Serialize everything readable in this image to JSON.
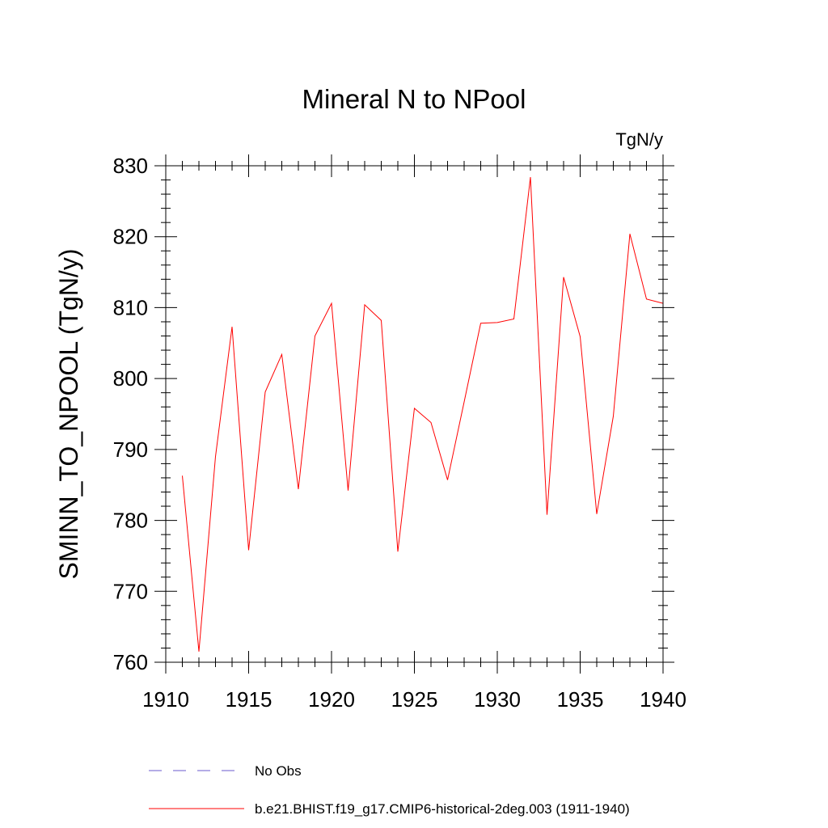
{
  "chart_data": {
    "type": "line",
    "title": "Mineral N to NPool",
    "units_label": "TgN/y",
    "ylabel": "SMINN_TO_NPOOL  (TgN/y)",
    "xlabel": "",
    "xlim": [
      1910,
      1940
    ],
    "ylim": [
      760,
      830
    ],
    "x_ticks": [
      1910,
      1915,
      1920,
      1925,
      1930,
      1935,
      1940
    ],
    "y_ticks": [
      760,
      770,
      780,
      790,
      800,
      810,
      820,
      830
    ],
    "series": [
      {
        "name": "b.e21.BHIST.f19_g17.CMIP6-historical-2deg.003 (1911-1940)",
        "color": "#ff0000",
        "x": [
          1911,
          1912,
          1913,
          1914,
          1915,
          1916,
          1917,
          1918,
          1919,
          1920,
          1921,
          1922,
          1923,
          1924,
          1925,
          1926,
          1927,
          1928,
          1929,
          1930,
          1931,
          1932,
          1933,
          1934,
          1935,
          1936,
          1937,
          1938,
          1939,
          1940
        ],
        "y": [
          786.3,
          761.5,
          789.0,
          807.3,
          775.8,
          798.1,
          803.4,
          784.4,
          806.0,
          810.6,
          784.2,
          810.4,
          808.2,
          775.6,
          795.8,
          793.8,
          785.7,
          796.7,
          807.8,
          807.9,
          808.4,
          828.4,
          780.8,
          814.3,
          805.9,
          780.9,
          794.7,
          820.4,
          811.2,
          810.6
        ]
      }
    ],
    "legend": [
      {
        "label": "No Obs",
        "style": "dashed",
        "color": "#6a5acd"
      },
      {
        "label": "b.e21.BHIST.f19_g17.CMIP6-historical-2deg.003 (1911-1940)",
        "style": "solid",
        "color": "#ff0000"
      }
    ],
    "legend_placement": "bottom"
  }
}
